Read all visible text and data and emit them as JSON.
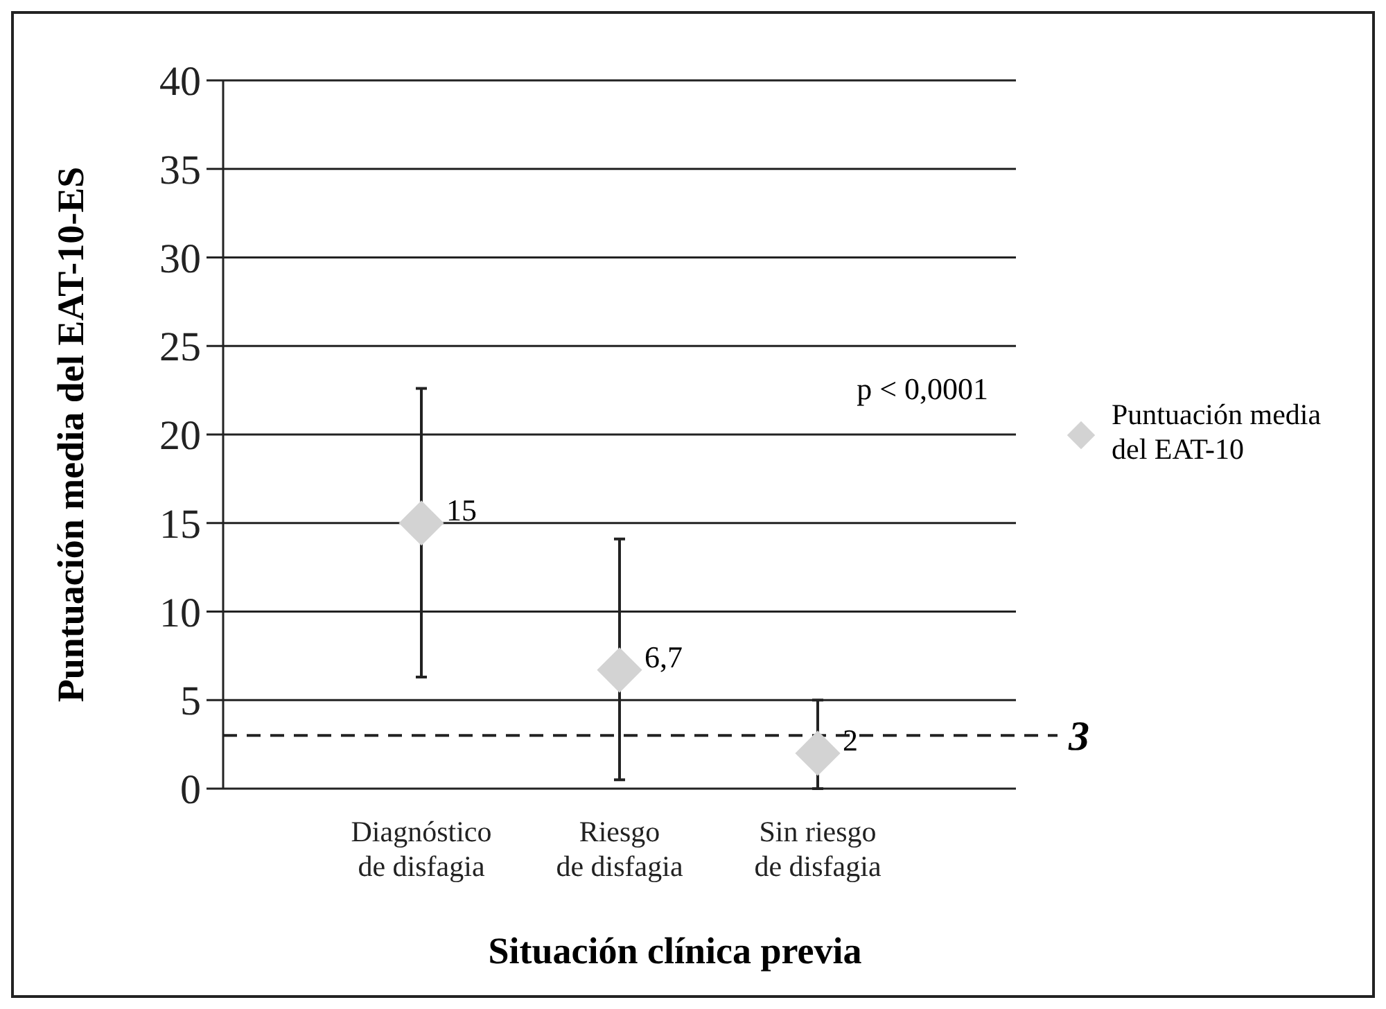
{
  "chart_data": {
    "type": "scatter",
    "xlabel": "Situación clínica previa",
    "ylabel": "Puntuación media del EAT-10-ES",
    "categories": [
      "Diagnóstico\nde disfagia",
      "Riesgo\nde disfagia",
      "Sin riesgo\nde disfagia"
    ],
    "series": [
      {
        "name": "Puntuación media\ndel EAT-10",
        "color": "#d3d3d3",
        "values": [
          15,
          6.7,
          2
        ],
        "errors": [
          [
            6.3,
            22.6
          ],
          [
            0.5,
            14.1
          ],
          [
            0,
            5
          ]
        ],
        "value_labels": [
          "15",
          "6,7",
          "2"
        ]
      }
    ],
    "ylim": [
      0,
      40
    ],
    "yticks": [
      0,
      5,
      10,
      15,
      20,
      25,
      30,
      35,
      40
    ],
    "grid": "y",
    "legend": "right",
    "marker": "diamond",
    "ref_lines": [
      {
        "axis": "y",
        "value": 3,
        "label": "3",
        "line_style": "dashed"
      }
    ],
    "annotations": [
      "p < 0,0001"
    ]
  }
}
